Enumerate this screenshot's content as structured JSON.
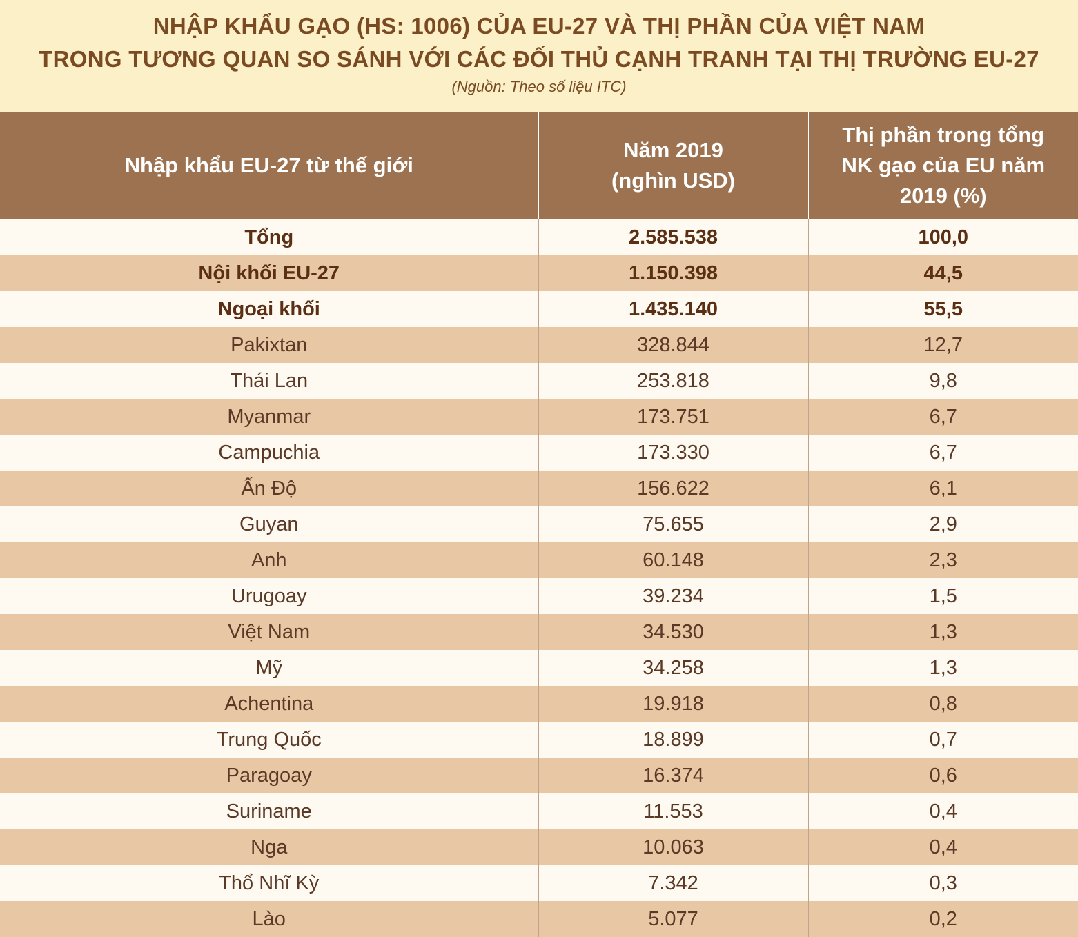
{
  "header": {
    "title_line1": "NHẬP KHẨU GẠO (HS: 1006) CỦA EU-27 VÀ THỊ PHẦN CỦA VIỆT NAM",
    "title_line2": "TRONG TƯƠNG QUAN SO SÁNH VỚI CÁC ĐỐI THỦ CẠNH TRANH TẠI THỊ TRƯỜNG EU-27",
    "source": "(Nguồn: Theo số liệu ITC)"
  },
  "table": {
    "columns": [
      {
        "lines": [
          "Nhập khẩu EU-27 từ thế giới"
        ]
      },
      {
        "lines": [
          "Năm 2019",
          "(nghìn USD)"
        ]
      },
      {
        "lines": [
          "Thị phần trong tổng",
          "NK gạo của EU năm",
          "2019 (%)"
        ]
      }
    ],
    "rows": [
      {
        "name": "Tổng",
        "value": "2.585.538",
        "share": "100,0",
        "bold": true
      },
      {
        "name": "Nội khối EU-27",
        "value": "1.150.398",
        "share": "44,5",
        "bold": true
      },
      {
        "name": "Ngoại khối",
        "value": "1.435.140",
        "share": "55,5",
        "bold": true
      },
      {
        "name": "Pakixtan",
        "value": "328.844",
        "share": "12,7"
      },
      {
        "name": "Thái Lan",
        "value": "253.818",
        "share": "9,8"
      },
      {
        "name": "Myanmar",
        "value": "173.751",
        "share": "6,7"
      },
      {
        "name": "Campuchia",
        "value": "173.330",
        "share": "6,7"
      },
      {
        "name": "Ấn Độ",
        "value": "156.622",
        "share": "6,1"
      },
      {
        "name": "Guyan",
        "value": "75.655",
        "share": "2,9"
      },
      {
        "name": "Anh",
        "value": "60.148",
        "share": "2,3"
      },
      {
        "name": "Urugoay",
        "value": "39.234",
        "share": "1,5"
      },
      {
        "name": "Việt Nam",
        "value": "34.530",
        "share": "1,3"
      },
      {
        "name": "Mỹ",
        "value": "34.258",
        "share": "1,3"
      },
      {
        "name": "Achentina",
        "value": "19.918",
        "share": "0,8"
      },
      {
        "name": "Trung Quốc",
        "value": "18.899",
        "share": "0,7"
      },
      {
        "name": "Paragoay",
        "value": "16.374",
        "share": "0,6"
      },
      {
        "name": "Suriname",
        "value": "11.553",
        "share": "0,4"
      },
      {
        "name": "Nga",
        "value": "10.063",
        "share": "0,4"
      },
      {
        "name": "Thổ Nhĩ Kỳ",
        "value": "7.342",
        "share": "0,3"
      },
      {
        "name": "Lào",
        "value": "5.077",
        "share": "0,2"
      }
    ]
  },
  "colors": {
    "header_band": "#fbf0c8",
    "title_text": "#7a4a22",
    "table_header": "#9c7250",
    "row_light": "#fefaf1",
    "row_dark": "#e8c7a4"
  }
}
